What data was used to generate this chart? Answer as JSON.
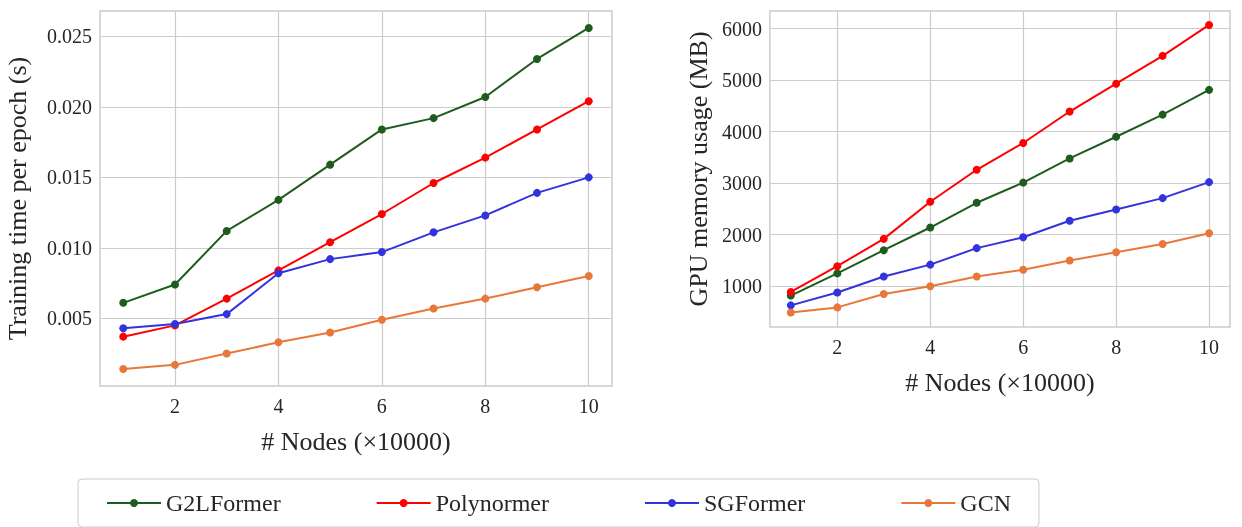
{
  "chart_data": [
    {
      "type": "line",
      "xlabel": "# Nodes (×10000)",
      "ylabel": "Training time per epoch (s)",
      "x": [
        1,
        2,
        3,
        4,
        5,
        6,
        7,
        8,
        9,
        10
      ],
      "xlim": [
        0.55,
        10.45
      ],
      "xticks": [
        2,
        4,
        6,
        8,
        10
      ],
      "ylim": [
        0.0002,
        0.0268
      ],
      "yticks": [
        {
          "value": 0.005,
          "label": "0.005"
        },
        {
          "value": 0.01,
          "label": "0.010"
        },
        {
          "value": 0.015,
          "label": "0.015"
        },
        {
          "value": 0.02,
          "label": "0.020"
        },
        {
          "value": 0.025,
          "label": "0.025"
        }
      ],
      "grid": true,
      "legend": "bottom",
      "marker": "circle",
      "line_style": "solid",
      "series": [
        {
          "name": "G2LFormer",
          "color": "#1e5c1e",
          "values": [
            0.0061,
            0.0074,
            0.0112,
            0.0134,
            0.0159,
            0.0184,
            0.0192,
            0.0207,
            0.0234,
            0.0256
          ]
        },
        {
          "name": "Polynormer",
          "color": "#ff0000",
          "values": [
            0.0037,
            0.0045,
            0.0064,
            0.0084,
            0.0104,
            0.0124,
            0.0146,
            0.0164,
            0.0184,
            0.0204
          ]
        },
        {
          "name": "SGFormer",
          "color": "#3333dd",
          "values": [
            0.0043,
            0.0046,
            0.0053,
            0.0082,
            0.0092,
            0.0097,
            0.0111,
            0.0123,
            0.0139,
            0.015
          ]
        },
        {
          "name": "GCN",
          "color": "#e8773a",
          "values": [
            0.0014,
            0.0017,
            0.0025,
            0.0033,
            0.004,
            0.0049,
            0.0057,
            0.0064,
            0.0072,
            0.008
          ]
        }
      ]
    },
    {
      "type": "line",
      "xlabel": "# Nodes (×10000)",
      "ylabel": "GPU memory usage (MB)",
      "x": [
        1,
        2,
        3,
        4,
        5,
        6,
        7,
        8,
        9,
        10
      ],
      "xlim": [
        0.55,
        10.45
      ],
      "xticks": [
        2,
        4,
        6,
        8,
        10
      ],
      "ylim": [
        210,
        6340
      ],
      "yticks": [
        1000,
        2000,
        3000,
        4000,
        5000,
        6000
      ],
      "grid": true,
      "marker": "circle",
      "line_style": "solid",
      "series": [
        {
          "color": "#1e5c1e",
          "values": [
            820,
            1250,
            1700,
            2140,
            2620,
            3010,
            3480,
            3900,
            4330,
            4810
          ]
        },
        {
          "color": "#ff0000",
          "values": [
            890,
            1390,
            1920,
            2640,
            3260,
            3780,
            4390,
            4930,
            5470,
            6070
          ]
        },
        {
          "color": "#3333dd",
          "values": [
            630,
            880,
            1190,
            1420,
            1740,
            1950,
            2270,
            2490,
            2710,
            3020
          ]
        },
        {
          "color": "#e8773a",
          "values": [
            490,
            590,
            850,
            1000,
            1190,
            1320,
            1500,
            1660,
            1820,
            2030
          ]
        }
      ]
    }
  ]
}
